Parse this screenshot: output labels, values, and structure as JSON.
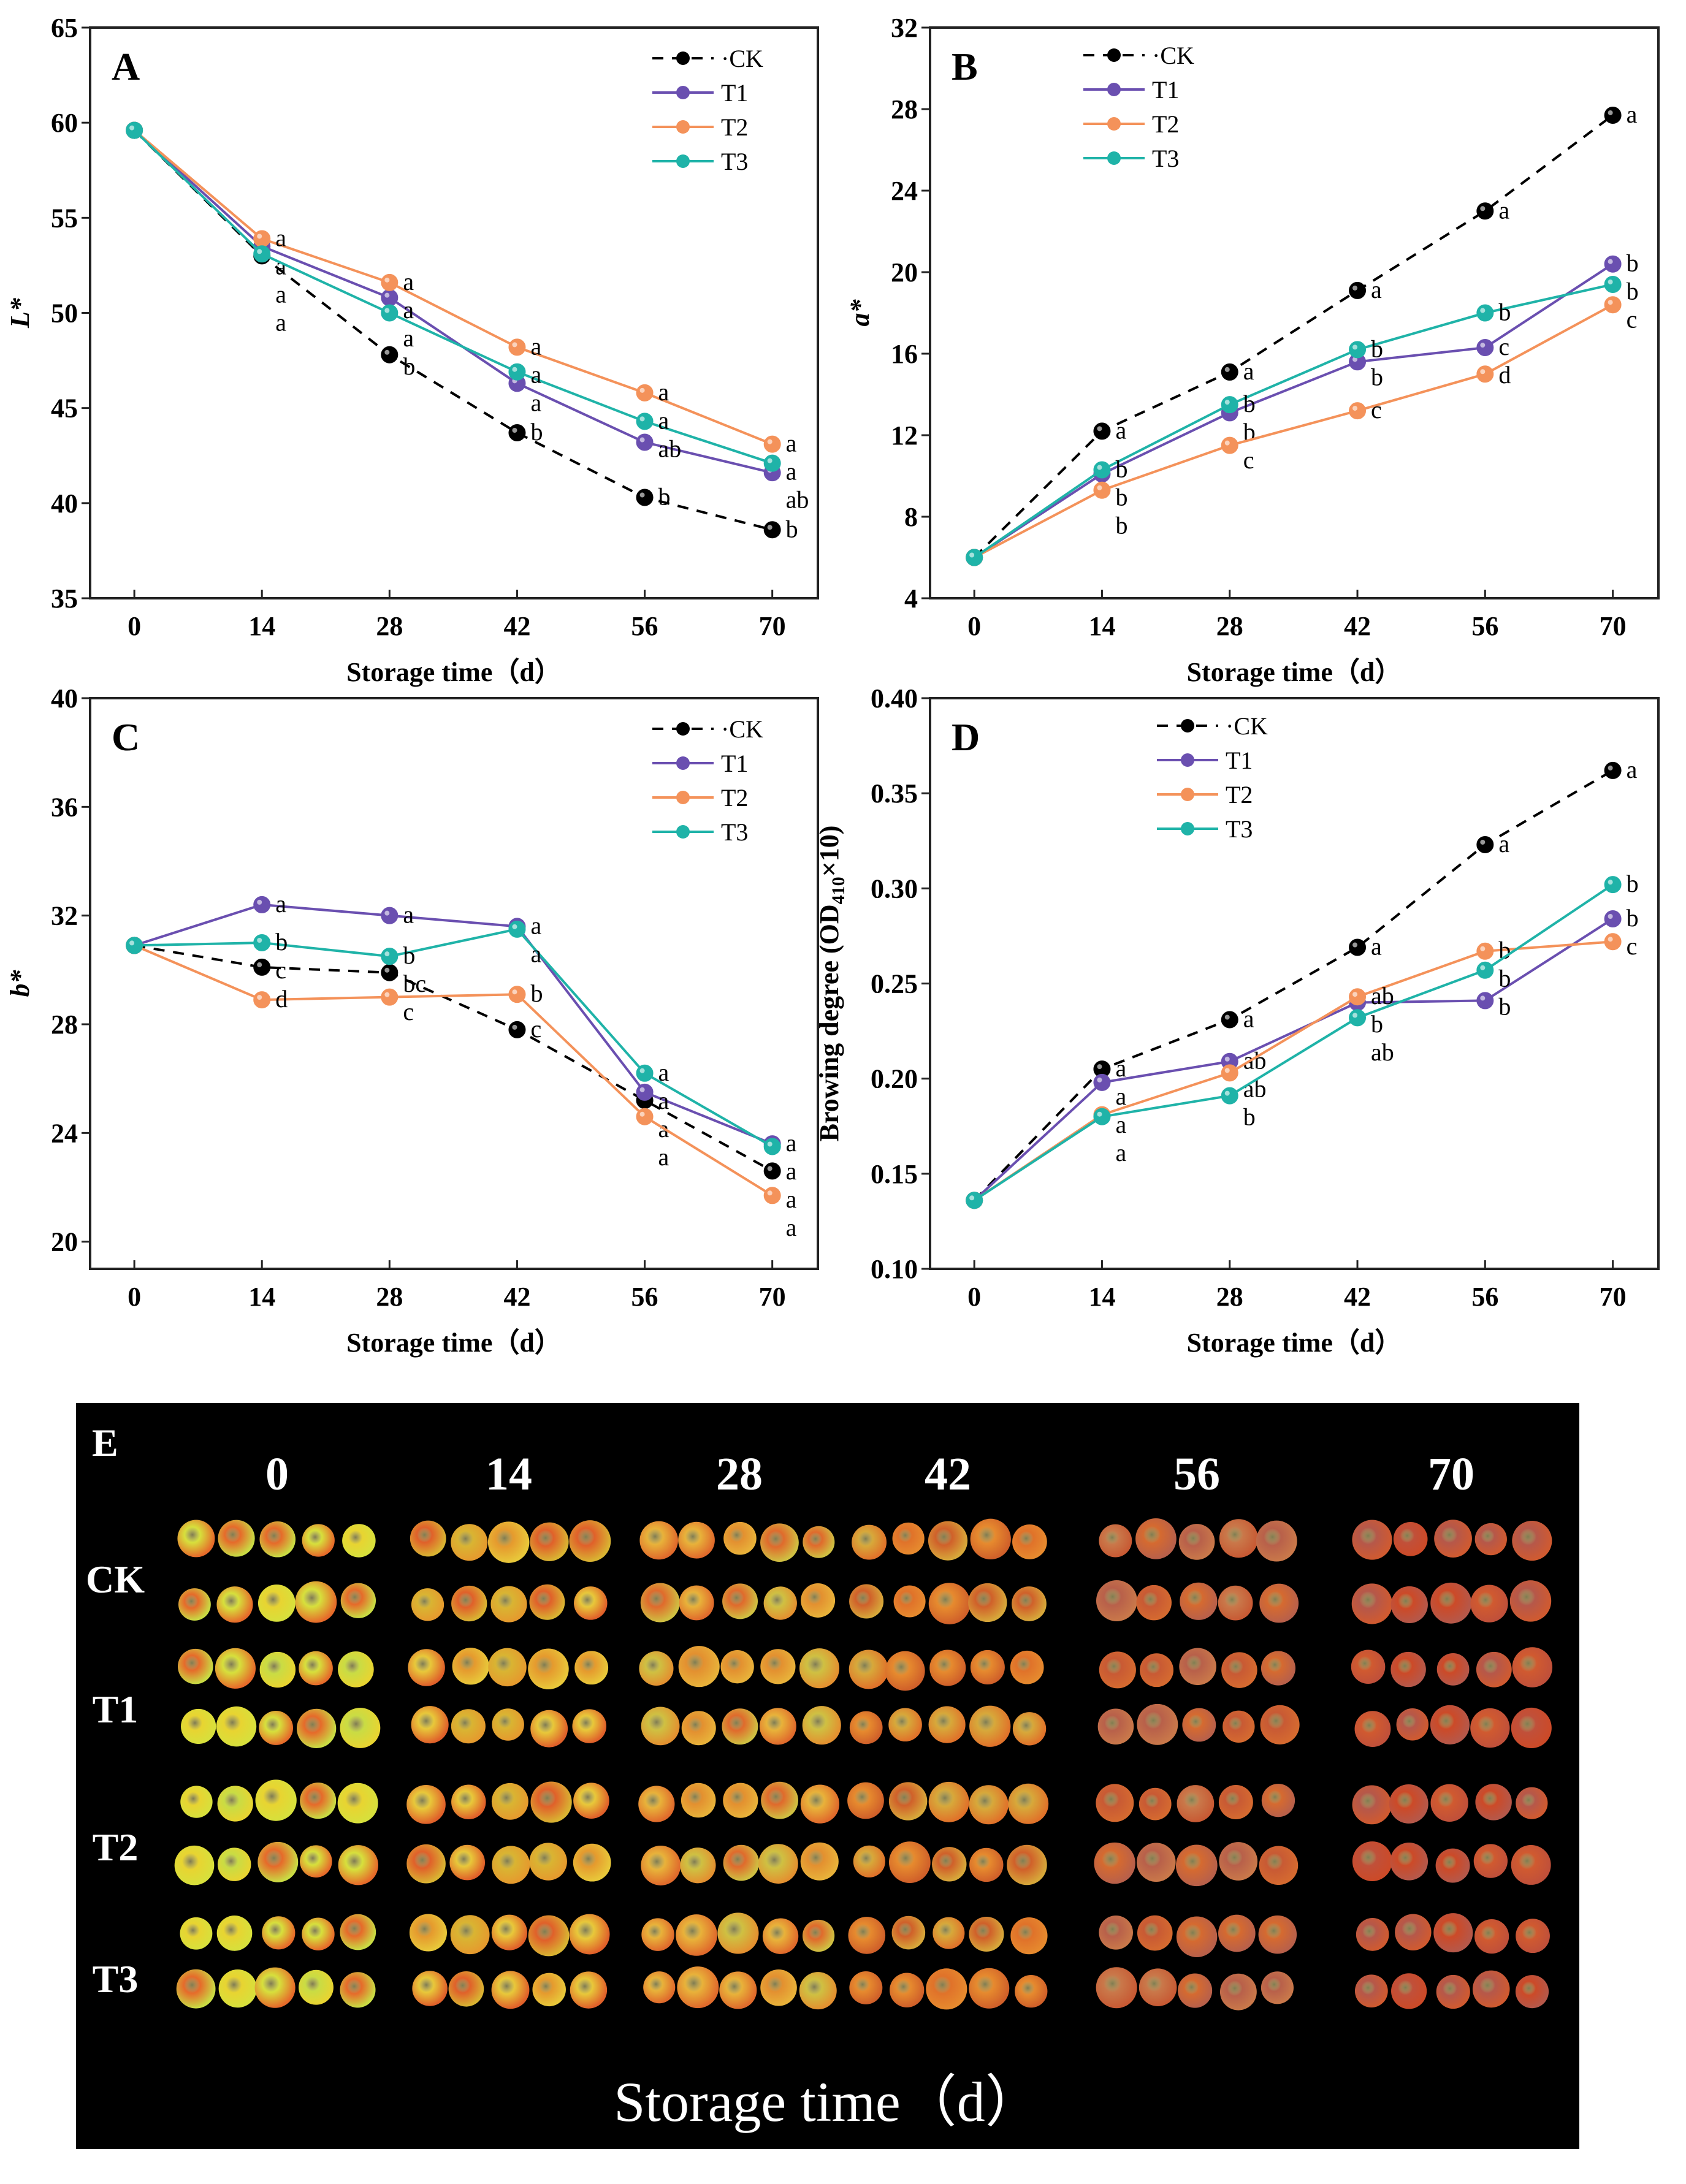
{
  "colors": {
    "CK": "#000000",
    "T1": "#6a4fb0",
    "T2": "#f4925a",
    "T3": "#1fb3a8"
  },
  "chart_data": [
    {
      "panel": "A",
      "type": "line",
      "title": "",
      "xlabel": "Storage time（d）",
      "ylabel": "L*",
      "x": [
        0,
        14,
        28,
        42,
        56,
        70
      ],
      "xticks": [
        "0",
        "14",
        "28",
        "42",
        "56",
        "70"
      ],
      "ylim": [
        35,
        65
      ],
      "yticks": [
        35,
        40,
        45,
        50,
        55,
        60,
        65
      ],
      "grid": false,
      "legend": "top-right",
      "series": [
        {
          "name": "CK",
          "dashed": true,
          "values": [
            59.6,
            53.0,
            47.8,
            43.7,
            40.3,
            38.6
          ],
          "letters": [
            "",
            "a",
            "b",
            "b",
            "b",
            "b"
          ]
        },
        {
          "name": "T1",
          "values": [
            59.6,
            53.5,
            50.8,
            46.3,
            43.2,
            41.6
          ],
          "letters": [
            "",
            "a",
            "a",
            "a",
            "ab",
            "ab"
          ]
        },
        {
          "name": "T2",
          "values": [
            59.6,
            53.9,
            51.6,
            48.2,
            45.8,
            43.1
          ],
          "letters": [
            "",
            "a",
            "a",
            "a",
            "a",
            "a"
          ]
        },
        {
          "name": "T3",
          "values": [
            59.6,
            53.1,
            50.0,
            46.9,
            44.3,
            42.1
          ],
          "letters": [
            "",
            "a",
            "a",
            "a",
            "a",
            "a"
          ]
        }
      ]
    },
    {
      "panel": "B",
      "type": "line",
      "title": "",
      "xlabel": "Storage time（d）",
      "ylabel": "a*",
      "x": [
        0,
        14,
        28,
        42,
        56,
        70
      ],
      "xticks": [
        "0",
        "14",
        "28",
        "42",
        "56",
        "70"
      ],
      "ylim": [
        4,
        32
      ],
      "yticks": [
        4,
        8,
        12,
        16,
        20,
        24,
        28,
        32
      ],
      "grid": false,
      "legend": "top-left",
      "series": [
        {
          "name": "CK",
          "dashed": true,
          "values": [
            6.0,
            12.2,
            15.1,
            19.1,
            23.0,
            27.7
          ],
          "letters": [
            "",
            "a",
            "a",
            "a",
            "a",
            "a"
          ]
        },
        {
          "name": "T1",
          "values": [
            6.0,
            10.1,
            13.1,
            15.6,
            16.3,
            20.4
          ],
          "letters": [
            "",
            "b",
            "b",
            "b",
            "c",
            "b"
          ]
        },
        {
          "name": "T2",
          "values": [
            6.0,
            9.3,
            11.5,
            13.2,
            15.0,
            18.4
          ],
          "letters": [
            "",
            "b",
            "c",
            "c",
            "d",
            "c"
          ]
        },
        {
          "name": "T3",
          "values": [
            6.0,
            10.3,
            13.5,
            16.2,
            18.0,
            19.4
          ],
          "letters": [
            "",
            "b",
            "b",
            "b",
            "b",
            "b"
          ]
        }
      ]
    },
    {
      "panel": "C",
      "type": "line",
      "title": "",
      "xlabel": "Storage time（d）",
      "ylabel": "b*",
      "x": [
        0,
        14,
        28,
        42,
        56,
        70
      ],
      "xticks": [
        "0",
        "14",
        "28",
        "42",
        "56",
        "70"
      ],
      "ylim": [
        19,
        40
      ],
      "yticks": [
        20,
        24,
        28,
        32,
        36,
        40
      ],
      "grid": false,
      "legend": "top-right",
      "series": [
        {
          "name": "CK",
          "dashed": true,
          "values": [
            30.9,
            30.1,
            29.9,
            27.8,
            25.2,
            22.6
          ],
          "letters": [
            "",
            "c",
            "bc",
            "c",
            "a",
            "a"
          ]
        },
        {
          "name": "T1",
          "values": [
            30.9,
            32.4,
            32.0,
            31.6,
            25.5,
            23.6
          ],
          "letters": [
            "",
            "a",
            "a",
            "a",
            "a",
            "a"
          ]
        },
        {
          "name": "T2",
          "values": [
            30.9,
            28.9,
            29.0,
            29.1,
            24.6,
            21.7
          ],
          "letters": [
            "",
            "d",
            "c",
            "b",
            "a",
            "a"
          ]
        },
        {
          "name": "T3",
          "values": [
            30.9,
            31.0,
            30.5,
            31.5,
            26.2,
            23.5
          ],
          "letters": [
            "",
            "b",
            "b",
            "a",
            "a",
            "a"
          ]
        }
      ]
    },
    {
      "panel": "D",
      "type": "line",
      "title": "",
      "xlabel": "Storage time（d）",
      "ylabel": "Browing degree (OD410×10)",
      "ylabel_parts": [
        "Browing degree (OD",
        "410",
        "×10)"
      ],
      "x": [
        0,
        14,
        28,
        42,
        56,
        70
      ],
      "xticks": [
        "0",
        "14",
        "28",
        "42",
        "56",
        "70"
      ],
      "ylim": [
        0.1,
        0.4
      ],
      "yticks": [
        "0.10",
        "0.15",
        "0.20",
        "0.25",
        "0.30",
        "0.35",
        "0.40"
      ],
      "grid": false,
      "legend": "top-center",
      "series": [
        {
          "name": "CK",
          "dashed": true,
          "values": [
            0.136,
            0.205,
            0.231,
            0.269,
            0.323,
            0.362
          ],
          "letters": [
            "",
            "a",
            "a",
            "a",
            "a",
            "a"
          ]
        },
        {
          "name": "T1",
          "values": [
            0.136,
            0.198,
            0.209,
            0.24,
            0.241,
            0.284
          ],
          "letters": [
            "",
            "a",
            "ab",
            "b",
            "b",
            "b"
          ]
        },
        {
          "name": "T2",
          "values": [
            0.136,
            0.181,
            0.203,
            0.243,
            0.267,
            0.272
          ],
          "letters": [
            "",
            "a",
            "ab",
            "ab",
            "b",
            "c"
          ]
        },
        {
          "name": "T3",
          "values": [
            0.136,
            0.18,
            0.191,
            0.232,
            0.257,
            0.302
          ],
          "letters": [
            "",
            "a",
            "b",
            "ab",
            "b",
            "b"
          ]
        }
      ]
    }
  ],
  "photo_panel": {
    "label": "E",
    "columns": [
      "0",
      "14",
      "28",
      "42",
      "56",
      "70"
    ],
    "rows": [
      "CK",
      "T1",
      "T2",
      "T3"
    ],
    "footer": "Storage time（d）"
  }
}
